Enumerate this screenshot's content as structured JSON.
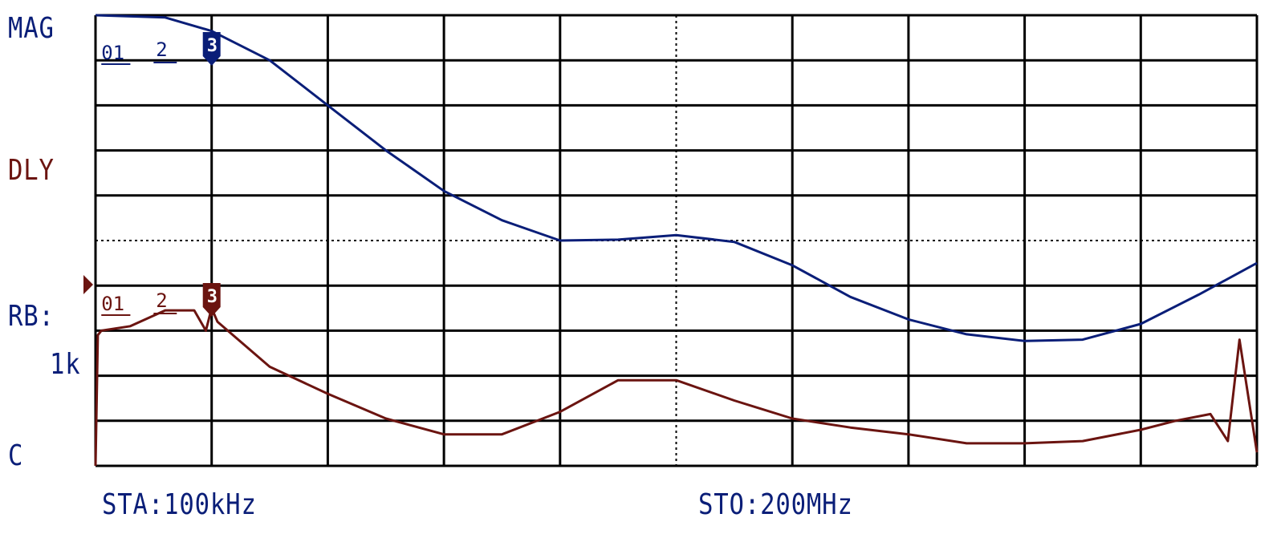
{
  "screen": {
    "left_labels": {
      "mag": "MAG",
      "dly": "DLY",
      "rb": "RB:",
      "rb_value": "1k",
      "c": "C"
    },
    "start_label": "STA:100kHz",
    "stop_label": "STO:200MHz",
    "colors": {
      "trace_mag": "#0a1e78",
      "trace_dly": "#6b1410",
      "grid": "#000000",
      "background": "#ffffff"
    },
    "markers": {
      "trace1": [
        "01",
        "2",
        "3"
      ],
      "trace2": [
        "01",
        "2",
        "3"
      ]
    }
  },
  "chart_data": {
    "type": "line",
    "grid": {
      "columns": 10,
      "rows": 10
    },
    "x_range": [
      "100kHz",
      "200MHz"
    ],
    "series": [
      {
        "name": "MAG",
        "x_div": [
          0,
          0.6,
          1.0,
          1.5,
          2.0,
          2.5,
          3.0,
          3.5,
          4.0,
          4.5,
          5.0,
          5.5,
          6.0,
          6.5,
          7.0,
          7.5,
          8.0,
          8.5,
          9.0,
          9.5,
          10.0
        ],
        "y_div": [
          10.0,
          9.95,
          9.65,
          9.0,
          8.0,
          7.0,
          6.1,
          5.45,
          5.0,
          5.02,
          5.12,
          4.97,
          4.45,
          3.75,
          3.25,
          2.92,
          2.77,
          2.8,
          3.15,
          3.8,
          4.5
        ]
      },
      {
        "name": "DLY",
        "x_div": [
          0,
          0.02,
          0.05,
          0.3,
          0.6,
          0.85,
          0.95,
          1.0,
          1.05,
          1.5,
          2.0,
          2.5,
          3.0,
          3.5,
          4.0,
          4.5,
          5.0,
          5.5,
          6.0,
          6.5,
          7.0,
          7.5,
          8.0,
          8.5,
          9.0,
          9.3,
          9.6,
          9.75,
          9.85,
          10.0
        ],
        "y_div": [
          0,
          2.9,
          3.0,
          3.1,
          3.45,
          3.45,
          3.0,
          3.5,
          3.2,
          2.2,
          1.6,
          1.05,
          0.7,
          0.7,
          1.2,
          1.9,
          1.9,
          1.45,
          1.05,
          0.85,
          0.7,
          0.5,
          0.5,
          0.55,
          0.8,
          1.0,
          1.15,
          0.55,
          2.8,
          0.3
        ]
      }
    ]
  }
}
